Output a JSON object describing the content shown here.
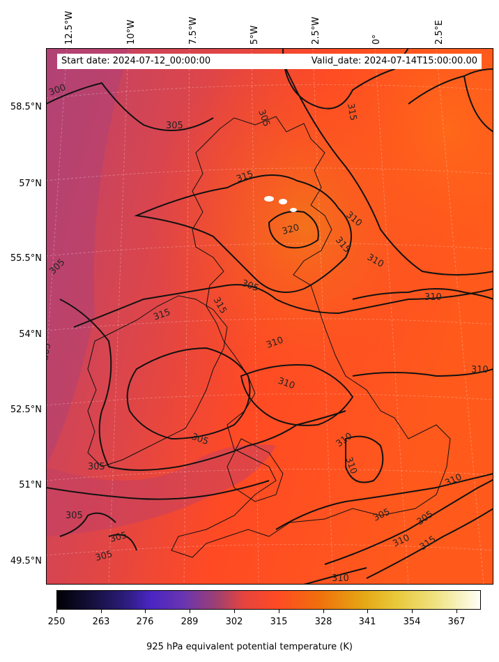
{
  "map": {
    "start_date": "Start date: 2024-07-12_00:00:00",
    "valid_date": "Valid_date: 2024-07-14T15:00:00.00",
    "longitude_labels": [
      "12.5°W",
      "10°W",
      "7.5°W",
      "5°W",
      "2.5°W",
      "0°",
      "2.5°E"
    ],
    "latitude_labels": [
      "58.5°N",
      "57°N",
      "55.5°N",
      "54°N",
      "52.5°N",
      "51°N",
      "49.5°N"
    ],
    "contour_labels": [
      "300",
      "305",
      "305",
      "305",
      "305",
      "305",
      "305",
      "305",
      "305",
      "305",
      "305",
      "310",
      "310",
      "310",
      "310",
      "310",
      "310",
      "310",
      "310",
      "310",
      "310",
      "310",
      "315",
      "315",
      "315",
      "315",
      "315",
      "315",
      "320",
      "305",
      "305"
    ],
    "colors": {
      "background_warm": "#ff4a24",
      "background_cool": "#c0406a",
      "contour": "#111111"
    }
  },
  "colorbar": {
    "title": "925 hPa equivalent potential temperature (K)",
    "ticks": [
      "250",
      "263",
      "276",
      "289",
      "302",
      "315",
      "328",
      "341",
      "354",
      "367"
    ]
  }
}
